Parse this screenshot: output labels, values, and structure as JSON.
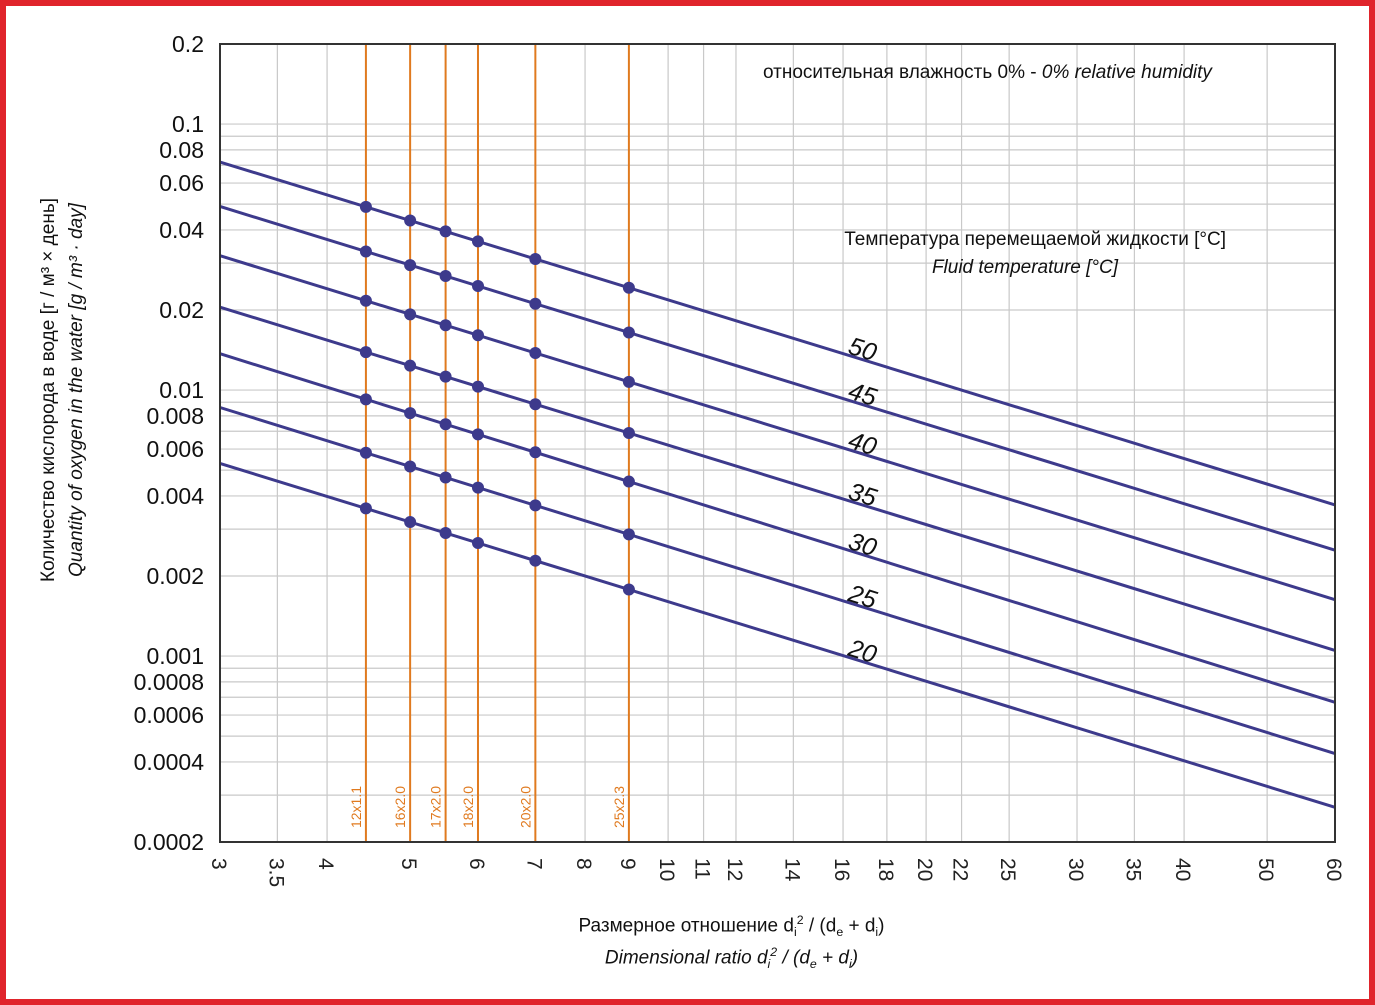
{
  "colors": {
    "frame": "#e0242b",
    "series": "#3d3a8c",
    "pipe_lines": "#e07a1f",
    "grid": "#c9c9c9",
    "axis": "#333333"
  },
  "annotations": {
    "humidity_ru": "относительная влажность 0%",
    "humidity_sep": " - ",
    "humidity_en": "0% relative humidity",
    "temp_title_ru": "Температура перемещаемой жидкости [°C]",
    "temp_title_en": "Fluid temperature [°C]"
  },
  "axis_labels": {
    "y_ru": "Количество кислорода в воде [г / м³ × день]",
    "y_en": "Quantity of oxygen in the water [g / m³ · day]",
    "x_ru_pre": "Размерное отношение d",
    "x_ru_i1": "i",
    "x_ru_sq": "2",
    "x_ru_mid": " / (d",
    "x_ru_e": "e",
    "x_ru_plus": " + d",
    "x_ru_i2": "i",
    "x_ru_end": ")",
    "x_en_pre": "Dimensional ratio d",
    "x_en_i1": "i",
    "x_en_sq": "2",
    "x_en_mid": " / (d",
    "x_en_e": "e",
    "x_en_plus": " + d",
    "x_en_i2": "i",
    "x_en_end": ")"
  },
  "chart_data": {
    "type": "line",
    "x_scale": "log",
    "y_scale": "log",
    "xlim": [
      3,
      60
    ],
    "ylim": [
      0.0002,
      0.2
    ],
    "grid": true,
    "x_ticks": [
      3,
      3.5,
      4,
      5,
      6,
      7,
      8,
      9,
      10,
      11,
      12,
      14,
      16,
      18,
      20,
      22,
      25,
      30,
      35,
      40,
      50,
      60
    ],
    "x_tick_labels": [
      "3",
      "3.5",
      "4",
      "5",
      "6",
      "7",
      "8",
      "9",
      "10",
      "11",
      "12",
      "14",
      "16",
      "18",
      "20",
      "22",
      "25",
      "30",
      "35",
      "40",
      "50",
      "60"
    ],
    "y_ticks": [
      0.0002,
      0.0004,
      0.0006,
      0.0008,
      0.001,
      0.002,
      0.004,
      0.006,
      0.008,
      0.01,
      0.02,
      0.04,
      0.06,
      0.08,
      0.1,
      0.2
    ],
    "y_tick_labels": [
      "0.0002",
      "0.0004",
      "0.0006",
      "0.0008",
      "0.001",
      "0.002",
      "0.004",
      "0.006",
      "0.008",
      "0.01",
      "0.02",
      "0.04",
      "0.06",
      "0.08",
      "0.1",
      "0.2"
    ],
    "pipe_sizes": [
      {
        "label": "12x1.1",
        "x": 4.44
      },
      {
        "label": "16x2.0",
        "x": 5.0
      },
      {
        "label": "17x2.0",
        "x": 5.5
      },
      {
        "label": "18x2.0",
        "x": 6.0
      },
      {
        "label": "20x2.0",
        "x": 7.0
      },
      {
        "label": "25x2.3",
        "x": 9.0
      }
    ],
    "series": [
      {
        "name": "50",
        "y_start": 0.072,
        "y_end": 0.0037
      },
      {
        "name": "45",
        "y_start": 0.049,
        "y_end": 0.0025
      },
      {
        "name": "40",
        "y_start": 0.032,
        "y_end": 0.00163
      },
      {
        "name": "35",
        "y_start": 0.0205,
        "y_end": 0.00105
      },
      {
        "name": "30",
        "y_start": 0.0137,
        "y_end": 0.00067
      },
      {
        "name": "25",
        "y_start": 0.0086,
        "y_end": 0.00043
      },
      {
        "name": "20",
        "y_start": 0.0053,
        "y_end": 0.00027
      }
    ]
  }
}
